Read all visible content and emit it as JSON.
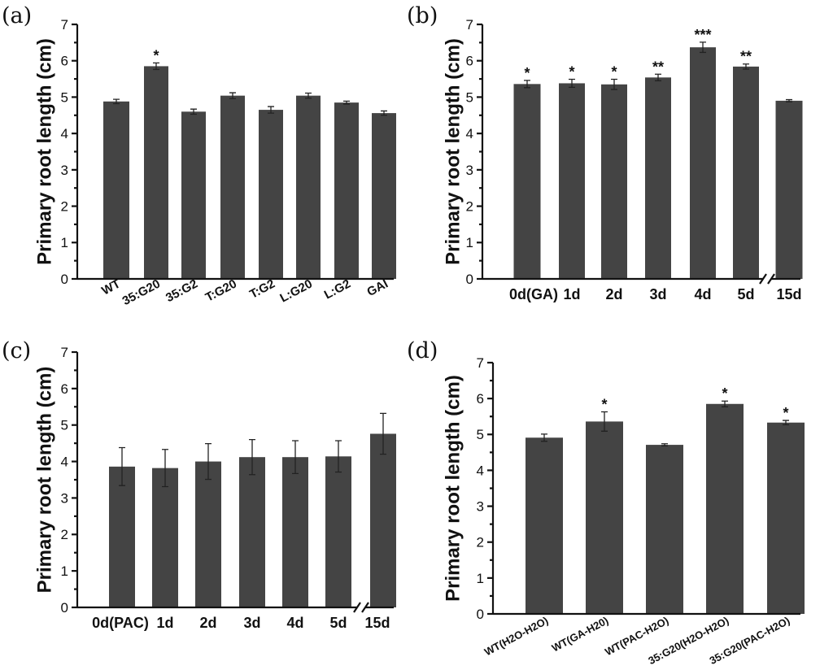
{
  "colors": {
    "bar": "#444444",
    "axis": "#111111"
  },
  "chart_data": [
    {
      "panel": "(a)",
      "type": "bar",
      "ylabel": "Primary root length (cm)",
      "ylim": [
        0,
        7
      ],
      "yticks": [
        "0",
        "1",
        "2",
        "3",
        "4",
        "5",
        "6",
        "7"
      ],
      "categories": [
        "WT",
        "35:G20",
        "35:G2",
        "T:G20",
        "T:G2",
        "L:G20",
        "L:G2",
        "GAI"
      ],
      "values": [
        4.88,
        5.85,
        4.6,
        5.04,
        4.65,
        5.04,
        4.85,
        4.56
      ],
      "errors": [
        0.06,
        0.09,
        0.07,
        0.08,
        0.09,
        0.07,
        0.04,
        0.06
      ],
      "significance": [
        "",
        "*",
        "",
        "",
        "",
        "",
        "",
        ""
      ]
    },
    {
      "panel": "(b)",
      "type": "bar",
      "ylabel": "Primary root length (cm)",
      "ylim": [
        0,
        7
      ],
      "yticks": [
        "0",
        "1",
        "2",
        "3",
        "4",
        "5",
        "6",
        "7"
      ],
      "categories": [
        "0d(GA)",
        "1d",
        "2d",
        "3d",
        "4d",
        "5d",
        "15d"
      ],
      "values": [
        5.36,
        5.38,
        5.35,
        5.54,
        6.37,
        5.84,
        4.9
      ],
      "errors": [
        0.1,
        0.11,
        0.14,
        0.09,
        0.14,
        0.07,
        0.03
      ],
      "significance": [
        "*",
        "*",
        "*",
        "**",
        "***",
        "**",
        ""
      ],
      "axis_break_before": "15d"
    },
    {
      "panel": "(c)",
      "type": "bar",
      "ylabel": "Primary root length (cm)",
      "ylim": [
        0,
        7
      ],
      "yticks": [
        "0",
        "1",
        "2",
        "3",
        "4",
        "5",
        "6",
        "7"
      ],
      "categories": [
        "0d(PAC)",
        "1d",
        "2d",
        "3d",
        "4d",
        "5d",
        "15d"
      ],
      "values": [
        3.86,
        3.82,
        4.0,
        4.12,
        4.12,
        4.14,
        4.76
      ],
      "errors": [
        0.52,
        0.51,
        0.49,
        0.48,
        0.45,
        0.43,
        0.56
      ],
      "significance": [
        "",
        "",
        "",
        "",
        "",
        "",
        ""
      ],
      "axis_break_before": "15d"
    },
    {
      "panel": "(d)",
      "type": "bar",
      "ylabel": "Primary root length (cm)",
      "ylim": [
        0,
        7
      ],
      "yticks": [
        "0",
        "1",
        "2",
        "3",
        "4",
        "5",
        "6",
        "7"
      ],
      "categories": [
        "WT(H2O-H2O)",
        "WT(GA-H20)",
        "WT(PAC-H2O)",
        "35:G20(H2O-H2O)",
        "35:G20(PAC-H2O)"
      ],
      "values": [
        4.91,
        5.36,
        4.71,
        5.85,
        5.33
      ],
      "errors": [
        0.1,
        0.27,
        0.03,
        0.08,
        0.06
      ],
      "significance": [
        "",
        "*",
        "",
        "*",
        "*"
      ]
    }
  ]
}
